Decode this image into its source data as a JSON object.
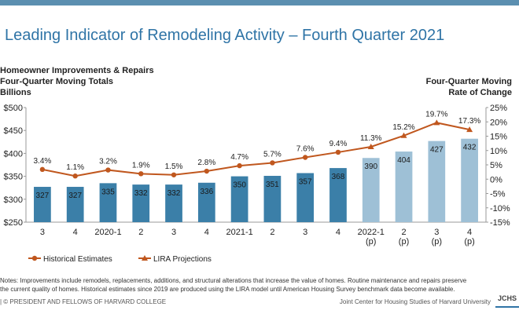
{
  "title": "Leading Indicator of Remodeling Activity – Fourth Quarter 2021",
  "left_header": {
    "line1": "Homeowner Improvements & Repairs",
    "line2": "Four-Quarter Moving Totals",
    "line3": "Billions"
  },
  "right_header": {
    "line1": "Four-Quarter Moving",
    "line2": "Rate of Change"
  },
  "legend": {
    "historical": "Historical Estimates",
    "projection": "LIRA Projections"
  },
  "notes": {
    "line1": "Notes: Improvements include remodels, replacements, additions, and structural alterations that increase the value of homes. Routine maintenance and repairs preserve",
    "line2": "the current quality of homes. Historical estimates since 2019 are produced using the LIRA model until American Housing Survey benchmark data become available."
  },
  "footer": {
    "left": "| © PRESIDENT AND FELLOWS OF HARVARD COLLEGE",
    "right": "Joint Center for Housing Studies of Harvard University",
    "logo": "JCHS"
  },
  "colors": {
    "bar_historical": "#3b7fa8",
    "bar_projection": "#9ec0d6",
    "line": "#c0571e",
    "title": "#2f74a6",
    "topbar": "#5b8fb0"
  },
  "chart_data": {
    "type": "bar",
    "categories": [
      "3",
      "4",
      "2020-1",
      "2",
      "3",
      "4",
      "2021-1",
      "2",
      "3",
      "4",
      "2022-1\n(p)",
      "2\n(p)",
      "3\n(p)",
      "4\n(p)"
    ],
    "series": [
      {
        "name": "",
        "axis": "left",
        "values": [
          327,
          327,
          335,
          332,
          332,
          336,
          350,
          351,
          357,
          368,
          390,
          404,
          427,
          432
        ],
        "value_labels": [
          "327",
          "327",
          "335",
          "332",
          "332",
          "336",
          "350",
          "351",
          "357",
          "368",
          "390",
          "404",
          "427",
          "432"
        ]
      },
      {
        "name": "Historical Estimates / LIRA Projections",
        "type": "line",
        "axis": "right",
        "values": [
          3.4,
          1.1,
          3.2,
          1.9,
          1.5,
          2.8,
          4.7,
          5.7,
          7.6,
          9.4,
          11.3,
          15.2,
          19.7,
          17.3
        ],
        "value_labels": [
          "3.4%",
          "1.1%",
          "3.2%",
          "1.9%",
          "1.5%",
          "2.8%",
          "4.7%",
          "5.7%",
          "7.6%",
          "9.4%",
          "11.3%",
          "15.2%",
          "19.7%",
          "17.3%"
        ]
      }
    ],
    "projection_start_index": 10,
    "left_axis": {
      "ylim": [
        250,
        500
      ],
      "ticks": [
        "$250",
        "$300",
        "$350",
        "$400",
        "$450",
        "$500"
      ]
    },
    "right_axis": {
      "ylim": [
        -15,
        25
      ],
      "ticks": [
        "-15%",
        "-10%",
        "-5%",
        "0%",
        "5%",
        "10%",
        "15%",
        "20%",
        "25%"
      ]
    },
    "grid": false,
    "legend_position": "bottom-left"
  }
}
